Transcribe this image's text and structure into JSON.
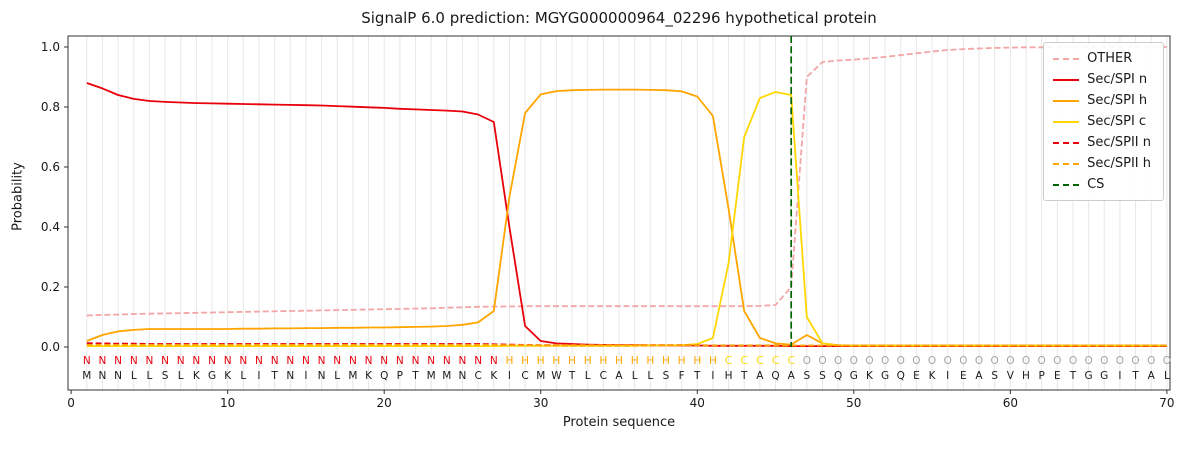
{
  "chart_data": {
    "type": "line",
    "title": "SignalP 6.0 prediction: MGYG000000964_02296 hypothetical protein",
    "xlabel": "Protein sequence",
    "ylabel": "Probability",
    "x_ticks": [
      0,
      10,
      20,
      30,
      40,
      50,
      60,
      70
    ],
    "y_ticks": [
      "0.0",
      "0.2",
      "0.4",
      "0.6",
      "0.8",
      "1.0"
    ],
    "xlim": [
      -0.2,
      70.2
    ],
    "ylim": [
      -0.143,
      1.037
    ],
    "grid": "vertical gridline per residue",
    "legend_position": "upper right",
    "sequence": "MNNLLSLKGKLITNINLMKQPTMMNCKICMWTLCALLSFTIHTAQASSQGKGQEKIEASVHPETGGITAL",
    "regions": "NNNNNNNNNNNNNNNNNNNNNNNNNNNHHHHHHHHHHHHHHCCCCCOOOOOOOOOOOOOOOOOOOOOOOO",
    "region_colors": {
      "N": "#e8000b",
      "H": "#ffa500",
      "C": "#ffd700",
      "O": "#a3a3a3"
    },
    "cs": {
      "label": "CS",
      "position": 46,
      "color": "#006400"
    },
    "x": [
      1,
      2,
      3,
      4,
      5,
      6,
      7,
      8,
      9,
      10,
      11,
      12,
      13,
      14,
      15,
      16,
      17,
      18,
      19,
      20,
      21,
      22,
      23,
      24,
      25,
      26,
      27,
      28,
      29,
      30,
      31,
      32,
      33,
      34,
      35,
      36,
      37,
      38,
      39,
      40,
      41,
      42,
      43,
      44,
      45,
      46,
      47,
      48,
      49,
      50,
      51,
      52,
      53,
      54,
      55,
      56,
      57,
      58,
      59,
      60,
      61,
      62,
      63,
      64,
      65,
      66,
      67,
      68,
      69,
      70
    ],
    "series": [
      {
        "name": "OTHER",
        "color": "#f3a6a6",
        "dash": true,
        "values": [
          0.105,
          0.107,
          0.108,
          0.11,
          0.111,
          0.112,
          0.113,
          0.114,
          0.115,
          0.116,
          0.117,
          0.118,
          0.119,
          0.12,
          0.121,
          0.122,
          0.123,
          0.124,
          0.125,
          0.126,
          0.127,
          0.128,
          0.129,
          0.131,
          0.132,
          0.134,
          0.135,
          0.135,
          0.136,
          0.136,
          0.136,
          0.136,
          0.136,
          0.136,
          0.136,
          0.136,
          0.136,
          0.136,
          0.136,
          0.136,
          0.136,
          0.136,
          0.136,
          0.137,
          0.14,
          0.2,
          0.9,
          0.95,
          0.955,
          0.958,
          0.962,
          0.967,
          0.973,
          0.979,
          0.985,
          0.99,
          0.993,
          0.995,
          0.997,
          0.998,
          0.999,
          0.999,
          1.0,
          1.0,
          1.0,
          1.0,
          1.0,
          1.0,
          1.0,
          1.0
        ]
      },
      {
        "name": "Sec/SPI n",
        "color": "#e8000b",
        "dash": false,
        "values": [
          0.88,
          0.862,
          0.84,
          0.827,
          0.82,
          0.817,
          0.815,
          0.813,
          0.812,
          0.811,
          0.81,
          0.809,
          0.808,
          0.807,
          0.806,
          0.805,
          0.803,
          0.801,
          0.799,
          0.797,
          0.794,
          0.792,
          0.79,
          0.788,
          0.785,
          0.775,
          0.75,
          0.4,
          0.07,
          0.02,
          0.012,
          0.01,
          0.008,
          0.007,
          0.006,
          0.006,
          0.005,
          0.005,
          0.005,
          0.005,
          0.004,
          0.004,
          0.004,
          0.004,
          0.004,
          0.003,
          0.003,
          0.003,
          0.003,
          0.003,
          0.003,
          0.003,
          0.003,
          0.003,
          0.003,
          0.003,
          0.003,
          0.003,
          0.003,
          0.003,
          0.003,
          0.003,
          0.003,
          0.003,
          0.003,
          0.003,
          0.003,
          0.003,
          0.003,
          0.003
        ]
      },
      {
        "name": "Sec/SPI h",
        "color": "#ffa500",
        "dash": false,
        "values": [
          0.02,
          0.04,
          0.052,
          0.057,
          0.06,
          0.06,
          0.06,
          0.06,
          0.06,
          0.06,
          0.061,
          0.061,
          0.062,
          0.062,
          0.063,
          0.063,
          0.064,
          0.064,
          0.065,
          0.065,
          0.066,
          0.067,
          0.068,
          0.07,
          0.074,
          0.082,
          0.12,
          0.5,
          0.78,
          0.842,
          0.853,
          0.856,
          0.857,
          0.858,
          0.858,
          0.858,
          0.857,
          0.856,
          0.852,
          0.835,
          0.77,
          0.46,
          0.12,
          0.03,
          0.012,
          0.008,
          0.04,
          0.012,
          0.006,
          0.005,
          0.005,
          0.005,
          0.005,
          0.005,
          0.005,
          0.005,
          0.005,
          0.005,
          0.005,
          0.005,
          0.005,
          0.005,
          0.005,
          0.005,
          0.005,
          0.005,
          0.005,
          0.005,
          0.005,
          0.005
        ]
      },
      {
        "name": "Sec/SPI c",
        "color": "#ffd700",
        "dash": false,
        "values": [
          0.003,
          0.003,
          0.003,
          0.003,
          0.003,
          0.003,
          0.003,
          0.003,
          0.003,
          0.003,
          0.003,
          0.003,
          0.003,
          0.003,
          0.003,
          0.003,
          0.003,
          0.003,
          0.003,
          0.003,
          0.003,
          0.003,
          0.003,
          0.003,
          0.003,
          0.003,
          0.003,
          0.004,
          0.004,
          0.004,
          0.004,
          0.004,
          0.004,
          0.004,
          0.004,
          0.004,
          0.005,
          0.005,
          0.006,
          0.01,
          0.03,
          0.28,
          0.7,
          0.83,
          0.85,
          0.84,
          0.1,
          0.012,
          0.005,
          0.004,
          0.004,
          0.004,
          0.004,
          0.004,
          0.004,
          0.004,
          0.004,
          0.004,
          0.004,
          0.004,
          0.004,
          0.004,
          0.004,
          0.004,
          0.004,
          0.004,
          0.004,
          0.004,
          0.004,
          0.004
        ]
      },
      {
        "name": "Sec/SPII n",
        "color": "#e8000b",
        "dash": true,
        "values": [
          0.013,
          0.012,
          0.011,
          0.011,
          0.01,
          0.01,
          0.01,
          0.01,
          0.01,
          0.01,
          0.01,
          0.01,
          0.01,
          0.01,
          0.01,
          0.01,
          0.01,
          0.01,
          0.01,
          0.01,
          0.01,
          0.01,
          0.01,
          0.01,
          0.01,
          0.01,
          0.009,
          0.008,
          0.007,
          0.006,
          0.006,
          0.006,
          0.006,
          0.006,
          0.006,
          0.006,
          0.006,
          0.006,
          0.006,
          0.006,
          0.005,
          0.005,
          0.005,
          0.005,
          0.005,
          0.004,
          0.004,
          0.004,
          0.004,
          0.004,
          0.004,
          0.004,
          0.004,
          0.004,
          0.004,
          0.004,
          0.004,
          0.004,
          0.004,
          0.004,
          0.004,
          0.004,
          0.004,
          0.004,
          0.004,
          0.004,
          0.004,
          0.004,
          0.004,
          0.004
        ]
      },
      {
        "name": "Sec/SPII h",
        "color": "#ffa500",
        "dash": true,
        "values": [
          0.007,
          0.007,
          0.007,
          0.007,
          0.007,
          0.007,
          0.007,
          0.007,
          0.007,
          0.007,
          0.007,
          0.007,
          0.007,
          0.007,
          0.007,
          0.007,
          0.007,
          0.007,
          0.007,
          0.007,
          0.007,
          0.007,
          0.007,
          0.007,
          0.007,
          0.007,
          0.007,
          0.006,
          0.006,
          0.006,
          0.006,
          0.006,
          0.006,
          0.006,
          0.006,
          0.006,
          0.006,
          0.006,
          0.006,
          0.006,
          0.005,
          0.005,
          0.005,
          0.005,
          0.005,
          0.005,
          0.005,
          0.005,
          0.005,
          0.005,
          0.005,
          0.005,
          0.005,
          0.005,
          0.005,
          0.005,
          0.005,
          0.005,
          0.005,
          0.005,
          0.005,
          0.005,
          0.005,
          0.005,
          0.005,
          0.005,
          0.005,
          0.005,
          0.005,
          0.005
        ]
      }
    ]
  },
  "style_colors": {
    "grid": "#e7e7e7",
    "axis": "#333333",
    "text": "#1a1a1a",
    "sequence_letters": "#1a1a1a",
    "legend_border": "#cccccc"
  }
}
